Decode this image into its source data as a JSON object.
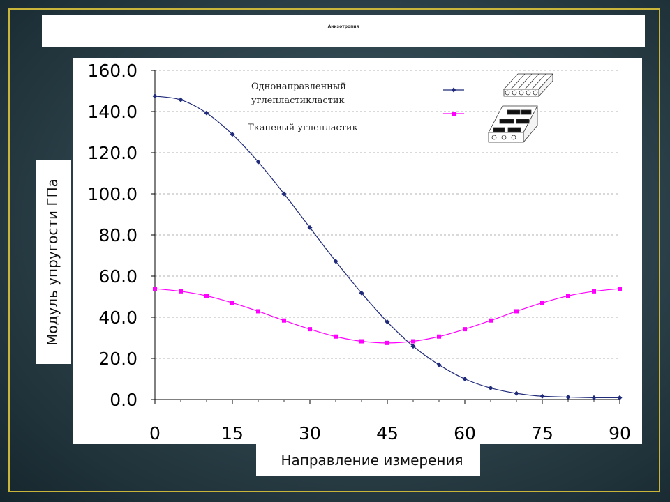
{
  "slide": {
    "title": "Анизотропия"
  },
  "chart_data": {
    "type": "line",
    "title": "Анизотропия",
    "xlabel": "Направление измерения",
    "ylabel": "Модуль упругости  ГПа",
    "x": [
      0,
      5,
      10,
      15,
      20,
      25,
      30,
      35,
      40,
      45,
      50,
      55,
      60,
      65,
      70,
      75,
      80,
      85,
      90
    ],
    "xticks": [
      0,
      15,
      30,
      45,
      60,
      75,
      90
    ],
    "xtick_labels": [
      "0",
      "15",
      "30",
      "45",
      "60",
      "75",
      "90"
    ],
    "yticks": [
      0,
      20,
      40,
      60,
      80,
      100,
      120,
      140,
      160
    ],
    "ytick_labels": [
      "0.0",
      "20.0",
      "40.0",
      "60.0",
      "80.0",
      "100.0",
      "120.0",
      "140.0",
      "160.0"
    ],
    "xlim": [
      0,
      90
    ],
    "ylim": [
      0,
      160
    ],
    "grid": "horizontal dashed",
    "legend_position": "top-right",
    "series": [
      {
        "name": "Однонаправленный углепластикластик",
        "legend_lines": [
          "Однонаправленный",
          "углепластикластик"
        ],
        "color": "#1f2a7a",
        "marker": "diamond",
        "values": [
          147.5,
          145.7,
          139.3,
          128.9,
          115.5,
          100.0,
          83.6,
          67.2,
          51.8,
          37.7,
          25.9,
          16.9,
          10.0,
          5.6,
          3.0,
          1.6,
          1.2,
          0.9,
          0.9
        ]
      },
      {
        "name": "Тканевый  углепластик",
        "legend_lines": [
          "Тканевый  углепластик"
        ],
        "color": "#ff00ff",
        "marker": "square",
        "values": [
          53.9,
          52.6,
          50.4,
          47.0,
          42.9,
          38.4,
          34.2,
          30.6,
          28.3,
          27.5,
          28.3,
          30.6,
          34.2,
          38.4,
          42.9,
          47.0,
          50.4,
          52.6,
          53.9
        ]
      }
    ]
  }
}
